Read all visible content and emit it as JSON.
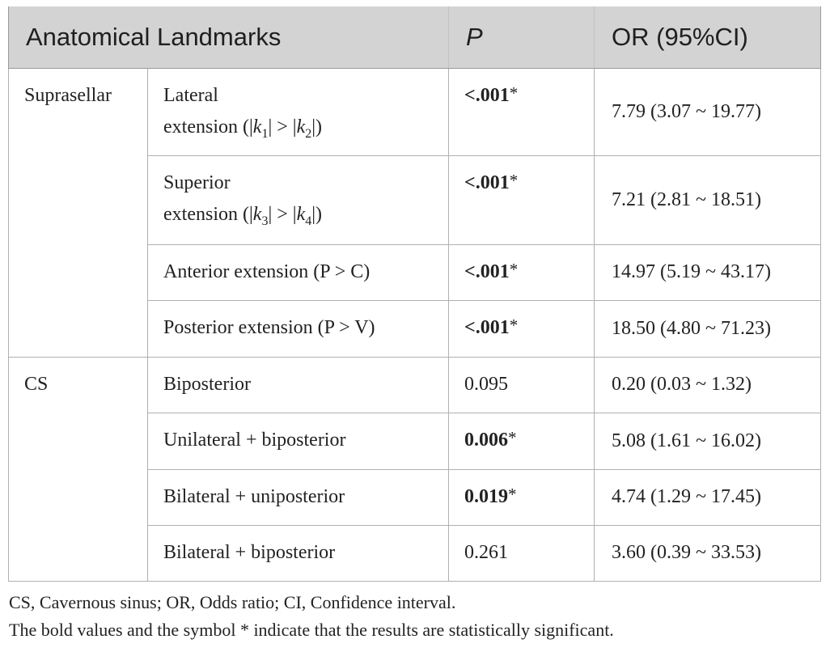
{
  "table": {
    "headers": {
      "landmarks": "Anatomical Landmarks",
      "p": "P",
      "or": "OR (95%CI)"
    },
    "groups": {
      "suprasellar": "Suprasellar",
      "cs": "CS"
    },
    "rows": [
      {
        "label_line1": "Lateral",
        "label_line2_prefix": "extension (|",
        "k_a": "k",
        "sub_a": "1",
        "mid": "| > |",
        "k_b": "k",
        "sub_b": "2",
        "suffix": "|)",
        "p_value": "<.001",
        "p_star": "*",
        "or": "7.79 (3.07 ~ 19.77)"
      },
      {
        "label_line1": "Superior",
        "label_line2_prefix": "extension (|",
        "k_a": "k",
        "sub_a": "3",
        "mid": "| > |",
        "k_b": "k",
        "sub_b": "4",
        "suffix": "|)",
        "p_value": "<.001",
        "p_star": "*",
        "or": "7.21 (2.81 ~ 18.51)"
      },
      {
        "label": "Anterior extension (P > C)",
        "p_value": "<.001",
        "p_star": "*",
        "or": "14.97 (5.19 ~ 43.17)"
      },
      {
        "label": "Posterior extension (P > V)",
        "p_value": "<.001",
        "p_star": "*",
        "or": "18.50 (4.80 ~ 71.23)"
      },
      {
        "label": "Biposterior",
        "p_value": "0.095",
        "or": "0.20 (0.03 ~ 1.32)"
      },
      {
        "label": "Unilateral + biposterior",
        "p_value": "0.006",
        "p_star": "*",
        "or": "5.08 (1.61 ~ 16.02)"
      },
      {
        "label": "Bilateral + uniposterior",
        "p_value": "0.019",
        "p_star": "*",
        "or": "4.74 (1.29 ~ 17.45)"
      },
      {
        "label": "Bilateral + biposterior",
        "p_value": "0.261",
        "or": "3.60 (0.39 ~ 33.53)"
      }
    ]
  },
  "footnotes": {
    "abbreviations": "CS, Cavernous sinus; OR, Odds ratio; CI, Confidence interval.",
    "significance": "The bold values and the symbol * indicate that the results are statistically significant."
  }
}
